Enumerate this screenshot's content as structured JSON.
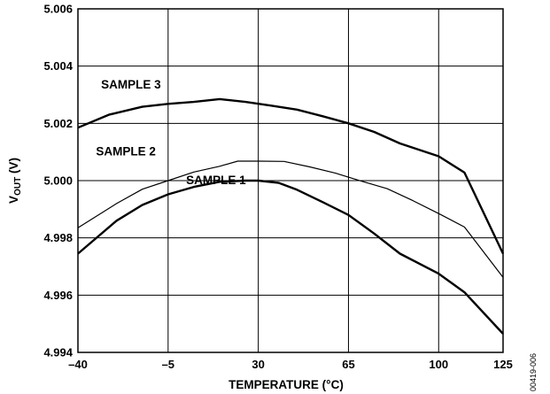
{
  "chart_data": {
    "type": "line",
    "title": "",
    "xlabel": "TEMPERATURE (°C)",
    "ylabel_main": "V",
    "ylabel_sub": "OUT",
    "ylabel_unit": " (V)",
    "xlim": [
      -40,
      125
    ],
    "ylim": [
      4.994,
      5.006
    ],
    "xticks": [
      -40,
      -5,
      30,
      65,
      100,
      125
    ],
    "xtick_labels": [
      "–40",
      "–5",
      "30",
      "65",
      "100",
      "125"
    ],
    "yticks": [
      4.994,
      4.996,
      4.998,
      5.0,
      5.002,
      5.004,
      5.006
    ],
    "ytick_labels": [
      "4.994",
      "4.996",
      "4.998",
      "5.000",
      "5.002",
      "5.004",
      "5.006"
    ],
    "grid": true,
    "code_label": "00419-006",
    "series": [
      {
        "name": "SAMPLE 1",
        "label_x": 2,
        "label_y": 4.99988,
        "points": [
          [
            -40,
            4.99745
          ],
          [
            -25,
            4.9986
          ],
          [
            -15,
            4.99915
          ],
          [
            -5,
            4.99952
          ],
          [
            5,
            4.99978
          ],
          [
            15,
            4.99996
          ],
          [
            25,
            5.0
          ],
          [
            30,
            5.0
          ],
          [
            38,
            4.99992
          ],
          [
            45,
            4.99968
          ],
          [
            55,
            4.99925
          ],
          [
            65,
            4.9988
          ],
          [
            75,
            4.99815
          ],
          [
            85,
            4.99745
          ],
          [
            100,
            4.99675
          ],
          [
            110,
            4.9961
          ],
          [
            125,
            4.99465
          ]
        ],
        "stroke": 2.4
      },
      {
        "name": "SAMPLE 2",
        "label_x": -33,
        "label_y": 5.00088,
        "points": [
          [
            -40,
            4.99835
          ],
          [
            -25,
            4.9992
          ],
          [
            -15,
            4.9997
          ],
          [
            -5,
            5.0
          ],
          [
            5,
            5.0003
          ],
          [
            15,
            5.0005
          ],
          [
            22,
            5.00068
          ],
          [
            30,
            5.00068
          ],
          [
            40,
            5.00067
          ],
          [
            50,
            5.00048
          ],
          [
            60,
            5.00026
          ],
          [
            70,
            4.99998
          ],
          [
            80,
            4.99972
          ],
          [
            90,
            4.9993
          ],
          [
            100,
            4.99885
          ],
          [
            110,
            4.99838
          ],
          [
            125,
            4.99662
          ]
        ],
        "stroke": 1.2
      },
      {
        "name": "SAMPLE 3",
        "label_x": -31,
        "label_y": 5.00322,
        "points": [
          [
            -40,
            5.00185
          ],
          [
            -28,
            5.0023
          ],
          [
            -15,
            5.00258
          ],
          [
            -5,
            5.00268
          ],
          [
            5,
            5.00275
          ],
          [
            15,
            5.00285
          ],
          [
            25,
            5.00275
          ],
          [
            35,
            5.00262
          ],
          [
            45,
            5.00248
          ],
          [
            55,
            5.00225
          ],
          [
            65,
            5.002
          ],
          [
            75,
            5.0017
          ],
          [
            85,
            5.0013
          ],
          [
            100,
            5.00085
          ],
          [
            110,
            5.00028
          ],
          [
            125,
            4.99745
          ]
        ],
        "stroke": 2.4
      }
    ]
  }
}
